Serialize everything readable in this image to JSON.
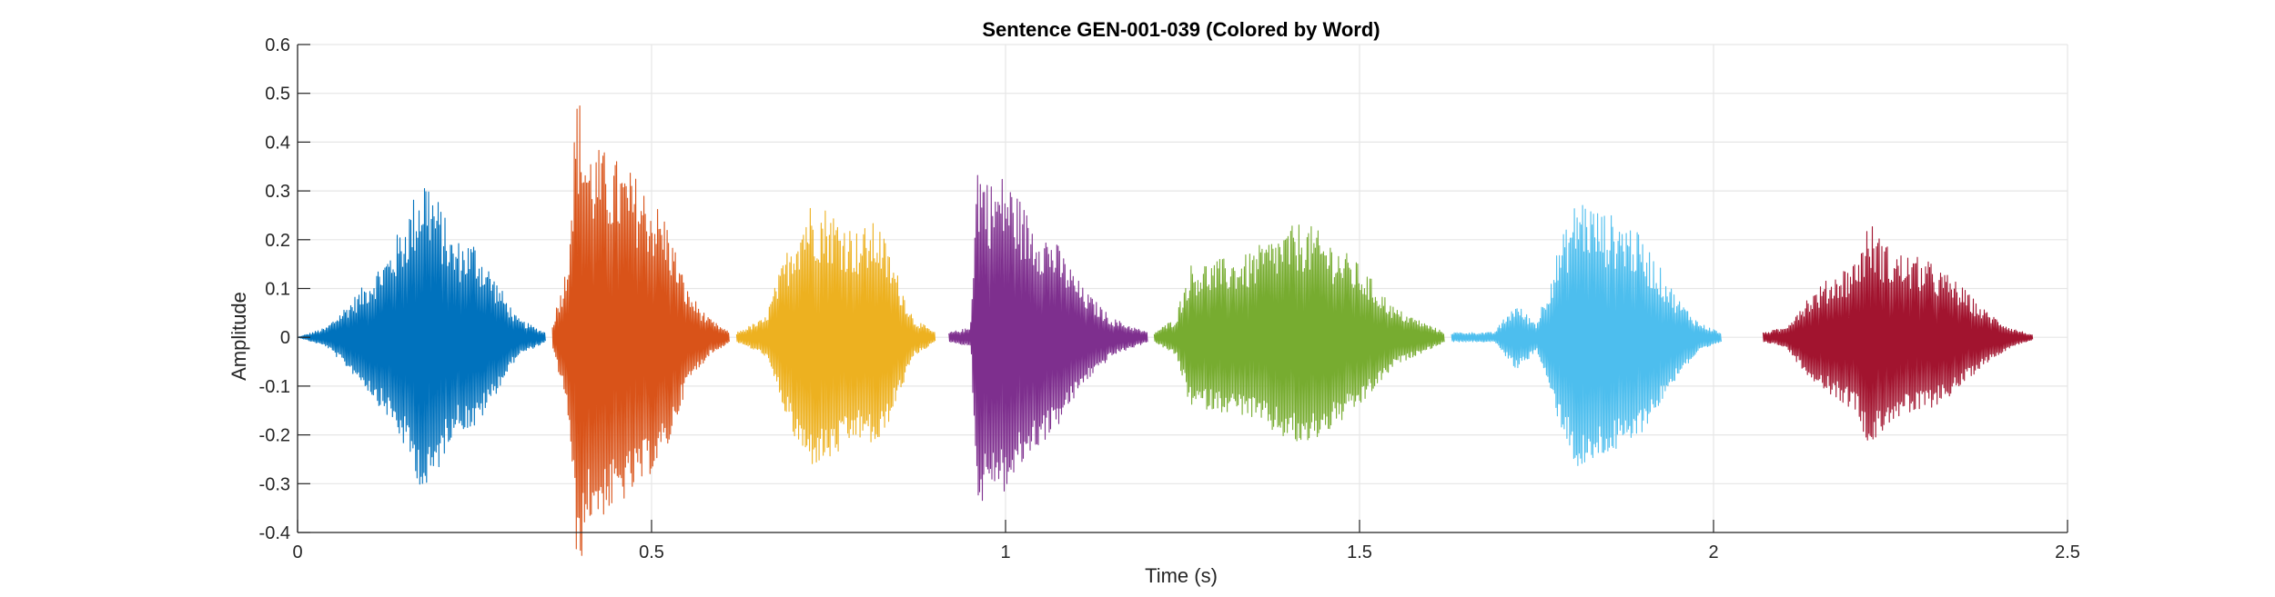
{
  "chart_data": {
    "type": "line",
    "title": "Sentence GEN-001-039 (Colored by Word)",
    "xlabel": "Time (s)",
    "ylabel": "Amplitude",
    "xlim": [
      0,
      2.5
    ],
    "ylim": [
      -0.4,
      0.6
    ],
    "xticks": [
      0,
      0.5,
      1,
      1.5,
      2,
      2.5
    ],
    "xtick_labels": [
      "0",
      "0.5",
      "1",
      "1.5",
      "2",
      "2.5"
    ],
    "yticks": [
      -0.4,
      -0.3,
      -0.2,
      -0.1,
      0,
      0.1,
      0.2,
      0.3,
      0.4,
      0.5,
      0.6
    ],
    "ytick_labels": [
      "-0.4",
      "-0.3",
      "-0.2",
      "-0.1",
      "0",
      "0.1",
      "0.2",
      "0.3",
      "0.4",
      "0.5",
      "0.6"
    ],
    "grid": true,
    "legend": "none",
    "series": [
      {
        "color": "#0072BD",
        "x_start": 0.0,
        "x_end": 0.35,
        "envelope": [
          [
            0.0,
            0.0
          ],
          [
            0.04,
            0.02
          ],
          [
            0.09,
            0.1
          ],
          [
            0.13,
            0.18
          ],
          [
            0.15,
            0.24
          ],
          [
            0.18,
            0.35
          ],
          [
            0.2,
            0.28
          ],
          [
            0.22,
            0.2
          ],
          [
            0.25,
            0.2
          ],
          [
            0.28,
            0.12
          ],
          [
            0.31,
            0.04
          ],
          [
            0.35,
            0.01
          ]
        ]
      },
      {
        "color": "#D95319",
        "x_start": 0.36,
        "x_end": 0.61,
        "envelope": [
          [
            0.36,
            0.03
          ],
          [
            0.38,
            0.15
          ],
          [
            0.395,
            0.52
          ],
          [
            0.41,
            0.4
          ],
          [
            0.44,
            0.38
          ],
          [
            0.48,
            0.33
          ],
          [
            0.52,
            0.25
          ],
          [
            0.55,
            0.1
          ],
          [
            0.58,
            0.04
          ],
          [
            0.61,
            0.01
          ]
        ]
      },
      {
        "color": "#EDB120",
        "x_start": 0.62,
        "x_end": 0.9,
        "envelope": [
          [
            0.62,
            0.01
          ],
          [
            0.66,
            0.04
          ],
          [
            0.7,
            0.22
          ],
          [
            0.72,
            0.28
          ],
          [
            0.75,
            0.27
          ],
          [
            0.79,
            0.22
          ],
          [
            0.82,
            0.24
          ],
          [
            0.84,
            0.16
          ],
          [
            0.87,
            0.04
          ],
          [
            0.9,
            0.01
          ]
        ]
      },
      {
        "color": "#7E2F8E",
        "x_start": 0.92,
        "x_end": 1.2,
        "envelope": [
          [
            0.92,
            0.01
          ],
          [
            0.95,
            0.02
          ],
          [
            0.96,
            0.38
          ],
          [
            0.98,
            0.32
          ],
          [
            1.0,
            0.34
          ],
          [
            1.03,
            0.26
          ],
          [
            1.07,
            0.2
          ],
          [
            1.11,
            0.1
          ],
          [
            1.15,
            0.04
          ],
          [
            1.2,
            0.01
          ]
        ]
      },
      {
        "color": "#77AC30",
        "x_start": 1.21,
        "x_end": 1.62,
        "envelope": [
          [
            1.21,
            0.01
          ],
          [
            1.24,
            0.04
          ],
          [
            1.26,
            0.15
          ],
          [
            1.3,
            0.16
          ],
          [
            1.34,
            0.17
          ],
          [
            1.38,
            0.21
          ],
          [
            1.42,
            0.24
          ],
          [
            1.46,
            0.2
          ],
          [
            1.5,
            0.15
          ],
          [
            1.55,
            0.06
          ],
          [
            1.62,
            0.01
          ]
        ]
      },
      {
        "color": "#4DBEEE",
        "x_start": 1.63,
        "x_end": 2.01,
        "envelope": [
          [
            1.63,
            0.01
          ],
          [
            1.69,
            0.01
          ],
          [
            1.72,
            0.07
          ],
          [
            1.75,
            0.03
          ],
          [
            1.78,
            0.18
          ],
          [
            1.81,
            0.3
          ],
          [
            1.84,
            0.26
          ],
          [
            1.88,
            0.24
          ],
          [
            1.91,
            0.18
          ],
          [
            1.95,
            0.08
          ],
          [
            1.98,
            0.03
          ],
          [
            2.01,
            0.01
          ]
        ]
      },
      {
        "color": "#A2142F",
        "x_start": 2.07,
        "x_end": 2.45,
        "envelope": [
          [
            2.07,
            0.01
          ],
          [
            2.1,
            0.02
          ],
          [
            2.13,
            0.08
          ],
          [
            2.17,
            0.13
          ],
          [
            2.2,
            0.16
          ],
          [
            2.22,
            0.24
          ],
          [
            2.25,
            0.18
          ],
          [
            2.3,
            0.16
          ],
          [
            2.34,
            0.12
          ],
          [
            2.38,
            0.06
          ],
          [
            2.42,
            0.02
          ],
          [
            2.45,
            0.005
          ]
        ]
      }
    ]
  }
}
